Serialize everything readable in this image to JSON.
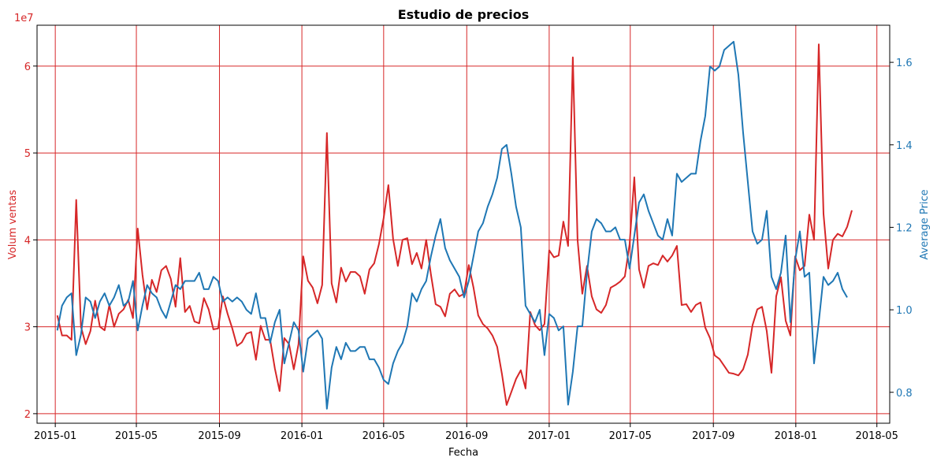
{
  "chart_data": {
    "type": "line",
    "title": "Estudio de precios",
    "xlabel": "Fecha",
    "ylabel_left": "Volum ventas",
    "ylabel_right": "Average Price",
    "left_axis_offset_label": "1e7",
    "left_axis_color": "#d62728",
    "right_axis_color": "#1f77b4",
    "grid": true,
    "grid_color": "#d62728",
    "xlim": [
      "2014-12-05",
      "2018-05-20"
    ],
    "ylim_left": [
      1.89,
      6.47
    ],
    "ylim_right": [
      0.725,
      1.69
    ],
    "x_ticks": [
      {
        "date": "2015-01-01",
        "label": "2015-01"
      },
      {
        "date": "2015-05-01",
        "label": "2015-05"
      },
      {
        "date": "2015-09-01",
        "label": "2015-09"
      },
      {
        "date": "2016-01-01",
        "label": "2016-01"
      },
      {
        "date": "2016-05-01",
        "label": "2016-05"
      },
      {
        "date": "2016-09-01",
        "label": "2016-09"
      },
      {
        "date": "2017-01-01",
        "label": "2017-01"
      },
      {
        "date": "2017-05-01",
        "label": "2017-05"
      },
      {
        "date": "2017-09-01",
        "label": "2017-09"
      },
      {
        "date": "2018-01-01",
        "label": "2018-01"
      },
      {
        "date": "2018-05-01",
        "label": "2018-05"
      }
    ],
    "y_ticks_left": [
      {
        "value": 2,
        "label": "2"
      },
      {
        "value": 3,
        "label": "3"
      },
      {
        "value": 4,
        "label": "4"
      },
      {
        "value": 5,
        "label": "5"
      },
      {
        "value": 6,
        "label": "6"
      }
    ],
    "y_ticks_right": [
      {
        "value": 0.8,
        "label": "0.8"
      },
      {
        "value": 1.0,
        "label": "1.0"
      },
      {
        "value": 1.2,
        "label": "1.2"
      },
      {
        "value": 1.4,
        "label": "1.4"
      },
      {
        "value": 1.6,
        "label": "1.6"
      }
    ],
    "x_start": "2015-01-04",
    "x_step_days": 7,
    "series": [
      {
        "name": "Volum ventas",
        "axis": "left",
        "color": "#d62728",
        "values": [
          3.13,
          2.9,
          2.9,
          2.85,
          4.46,
          3.0,
          2.8,
          2.95,
          3.3,
          3.0,
          2.96,
          3.25,
          3.0,
          3.15,
          3.2,
          3.31,
          3.1,
          4.13,
          3.6,
          3.2,
          3.54,
          3.4,
          3.65,
          3.7,
          3.55,
          3.23,
          3.79,
          3.17,
          3.24,
          3.06,
          3.04,
          3.33,
          3.2,
          2.97,
          2.98,
          3.35,
          3.15,
          2.98,
          2.78,
          2.82,
          2.92,
          2.94,
          2.62,
          3.01,
          2.85,
          2.85,
          2.52,
          2.26,
          2.87,
          2.8,
          2.51,
          2.8,
          3.81,
          3.53,
          3.45,
          3.27,
          3.48,
          5.23,
          3.5,
          3.28,
          3.68,
          3.52,
          3.63,
          3.63,
          3.58,
          3.38,
          3.66,
          3.73,
          3.95,
          4.25,
          4.63,
          4.01,
          3.7,
          4.0,
          4.02,
          3.72,
          3.85,
          3.67,
          4.0,
          3.6,
          3.26,
          3.23,
          3.12,
          3.38,
          3.43,
          3.35,
          3.38,
          3.71,
          3.45,
          3.13,
          3.03,
          2.98,
          2.9,
          2.77,
          2.46,
          2.1,
          2.25,
          2.4,
          2.5,
          2.29,
          3.17,
          3.02,
          2.96,
          3.03,
          3.88,
          3.8,
          3.82,
          4.21,
          3.93,
          6.1,
          4.0,
          3.38,
          3.7,
          3.35,
          3.2,
          3.16,
          3.25,
          3.45,
          3.48,
          3.52,
          3.58,
          3.95,
          4.72,
          3.66,
          3.45,
          3.7,
          3.73,
          3.71,
          3.82,
          3.75,
          3.82,
          3.93,
          3.25,
          3.26,
          3.17,
          3.25,
          3.28,
          2.99,
          2.87,
          2.67,
          2.63,
          2.55,
          2.47,
          2.46,
          2.44,
          2.51,
          2.68,
          3.02,
          3.2,
          3.23,
          2.95,
          2.47,
          3.35,
          3.57,
          3.07,
          2.9,
          3.81,
          3.65,
          3.7,
          4.29,
          4.0,
          6.25,
          4.3,
          3.67,
          4.0,
          4.07,
          4.04,
          4.15,
          4.34
        ]
      },
      {
        "name": "Average Price",
        "axis": "right",
        "color": "#1f77b4",
        "values": [
          0.95,
          1.01,
          1.03,
          1.04,
          0.89,
          0.94,
          1.03,
          1.02,
          0.98,
          1.02,
          1.04,
          1.01,
          1.03,
          1.06,
          1.01,
          1.02,
          1.07,
          0.95,
          1.01,
          1.06,
          1.04,
          1.03,
          1.0,
          0.98,
          1.02,
          1.06,
          1.05,
          1.07,
          1.07,
          1.07,
          1.09,
          1.05,
          1.05,
          1.08,
          1.07,
          1.02,
          1.03,
          1.02,
          1.03,
          1.02,
          1.0,
          0.99,
          1.04,
          0.98,
          0.98,
          0.92,
          0.97,
          1.0,
          0.87,
          0.92,
          0.97,
          0.95,
          0.85,
          0.93,
          0.94,
          0.95,
          0.93,
          0.76,
          0.86,
          0.91,
          0.88,
          0.92,
          0.9,
          0.9,
          0.91,
          0.91,
          0.88,
          0.88,
          0.86,
          0.83,
          0.82,
          0.87,
          0.9,
          0.92,
          0.96,
          1.04,
          1.02,
          1.05,
          1.07,
          1.13,
          1.18,
          1.22,
          1.15,
          1.12,
          1.1,
          1.08,
          1.03,
          1.07,
          1.13,
          1.19,
          1.21,
          1.25,
          1.28,
          1.32,
          1.39,
          1.4,
          1.33,
          1.25,
          1.2,
          1.01,
          0.99,
          0.97,
          1.0,
          0.89,
          0.99,
          0.98,
          0.95,
          0.96,
          0.77,
          0.85,
          0.96,
          0.96,
          1.09,
          1.19,
          1.22,
          1.21,
          1.19,
          1.19,
          1.2,
          1.17,
          1.17,
          1.1,
          1.18,
          1.26,
          1.28,
          1.24,
          1.21,
          1.18,
          1.17,
          1.22,
          1.18,
          1.33,
          1.31,
          1.32,
          1.33,
          1.33,
          1.41,
          1.47,
          1.59,
          1.58,
          1.59,
          1.63,
          1.64,
          1.65,
          1.57,
          1.43,
          1.31,
          1.19,
          1.16,
          1.17,
          1.24,
          1.08,
          1.05,
          1.09,
          1.18,
          0.97,
          1.12,
          1.19,
          1.08,
          1.09,
          0.87,
          0.97,
          1.08,
          1.06,
          1.07,
          1.09,
          1.05,
          1.03
        ]
      }
    ]
  }
}
